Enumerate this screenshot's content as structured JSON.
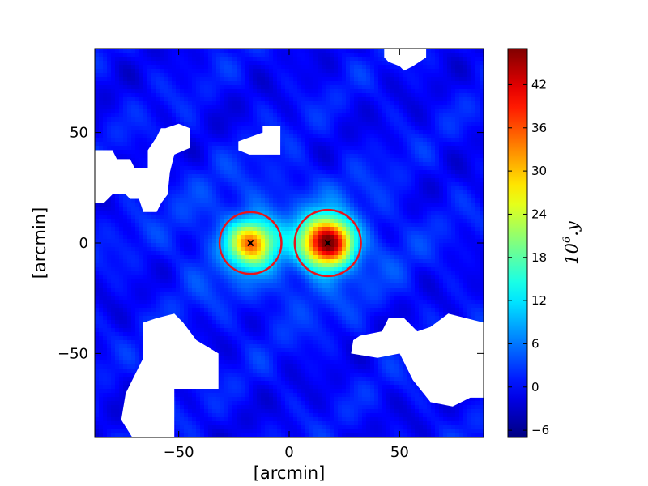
{
  "chart_data": {
    "type": "heatmap",
    "title": "",
    "xlabel": "[arcmin]",
    "ylabel": "[arcmin]",
    "xlim": [
      -88,
      88
    ],
    "ylim": [
      -88,
      88
    ],
    "xticks": [
      -50,
      0,
      50
    ],
    "yticks": [
      -50,
      0,
      50
    ],
    "x_tick_labels": [
      "−50",
      "0",
      "50"
    ],
    "y_tick_labels": [
      "−50",
      "0",
      "50"
    ],
    "grid": false,
    "colormap": "jet",
    "colorbar": {
      "label_base": "10",
      "label_exp": "6",
      "label_rest": ".y",
      "min": -7,
      "max": 47,
      "ticks": [
        -6,
        0,
        6,
        12,
        18,
        24,
        30,
        36,
        42
      ],
      "tick_labels": [
        "−6",
        "0",
        "6",
        "12",
        "18",
        "24",
        "30",
        "36",
        "42"
      ]
    },
    "background_level": 0,
    "sources": [
      {
        "x": -17.5,
        "y": 0,
        "peak": 30,
        "sigma": 7
      },
      {
        "x": 17.5,
        "y": 0,
        "peak": 46,
        "sigma": 7.5
      }
    ],
    "halo": {
      "x": 0,
      "y": 0,
      "sigma_x": 32,
      "sigma_y": 20,
      "peak": 6
    },
    "circles": [
      {
        "x": -17.5,
        "y": 0,
        "radius": 14
      },
      {
        "x": 17.5,
        "y": 0,
        "radius": 15
      }
    ],
    "markers": [
      {
        "x": -17.5,
        "y": 0,
        "symbol": "x"
      },
      {
        "x": 17.5,
        "y": 0,
        "symbol": "x"
      }
    ],
    "masked_regions": [
      [
        [
          -88,
          42
        ],
        [
          -80,
          42
        ],
        [
          -78,
          38
        ],
        [
          -72,
          38
        ],
        [
          -70,
          34
        ],
        [
          -64,
          34
        ],
        [
          -64,
          42
        ],
        [
          -60,
          48
        ],
        [
          -58,
          52
        ],
        [
          -56,
          52
        ],
        [
          -50,
          54
        ],
        [
          -45,
          52
        ],
        [
          -45,
          43
        ],
        [
          -52,
          40
        ],
        [
          -54,
          32
        ],
        [
          -55,
          22
        ],
        [
          -58,
          18
        ],
        [
          -60,
          14
        ],
        [
          -66,
          14
        ],
        [
          -68,
          20
        ],
        [
          -72,
          20
        ],
        [
          -74,
          22
        ],
        [
          -80,
          22
        ],
        [
          -84,
          18
        ],
        [
          -88,
          18
        ]
      ],
      [
        [
          -23,
          42
        ],
        [
          -23,
          46
        ],
        [
          -12,
          50
        ],
        [
          -12,
          53
        ],
        [
          -4,
          53
        ],
        [
          -4,
          40
        ],
        [
          -18,
          40
        ]
      ],
      [
        [
          43,
          88
        ],
        [
          43,
          84
        ],
        [
          45,
          82
        ],
        [
          50,
          80
        ],
        [
          52,
          78
        ],
        [
          56,
          80
        ],
        [
          62,
          84
        ],
        [
          62,
          88
        ]
      ],
      [
        [
          -71,
          -88
        ],
        [
          -76,
          -80
        ],
        [
          -74,
          -68
        ],
        [
          -70,
          -60
        ],
        [
          -66,
          -52
        ],
        [
          -66,
          -36
        ],
        [
          -60,
          -34
        ],
        [
          -52,
          -32
        ],
        [
          -48,
          -36
        ],
        [
          -42,
          -44
        ],
        [
          -32,
          -50
        ],
        [
          -32,
          -66
        ],
        [
          -52,
          -66
        ],
        [
          -52,
          -88
        ]
      ],
      [
        [
          28,
          -50
        ],
        [
          40,
          -52
        ],
        [
          50,
          -50
        ],
        [
          56,
          -62
        ],
        [
          64,
          -72
        ],
        [
          74,
          -74
        ],
        [
          82,
          -70
        ],
        [
          88,
          -70
        ],
        [
          88,
          -36
        ],
        [
          80,
          -34
        ],
        [
          72,
          -32
        ],
        [
          64,
          -38
        ],
        [
          58,
          -40
        ],
        [
          52,
          -34
        ],
        [
          45,
          -34
        ],
        [
          42,
          -40
        ],
        [
          32,
          -42
        ],
        [
          29,
          -44
        ]
      ]
    ]
  }
}
